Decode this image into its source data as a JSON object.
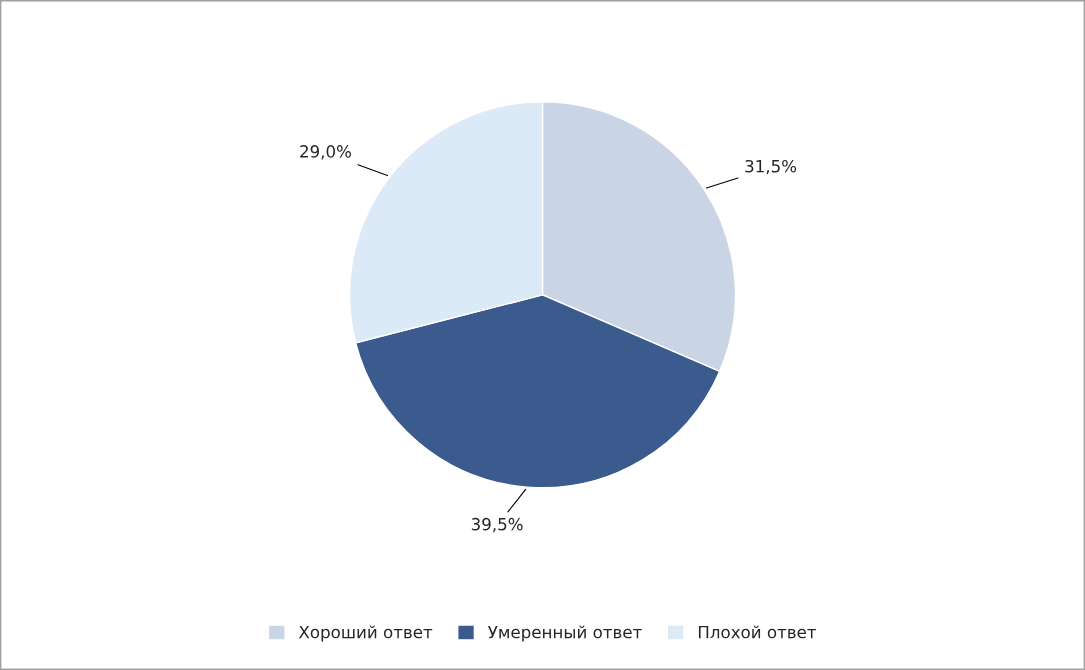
{
  "chart_data": {
    "type": "pie",
    "categories": [
      "Хороший ответ",
      "Умеренный ответ",
      "Плохой ответ"
    ],
    "values": [
      31.5,
      39.5,
      29.0
    ],
    "colors": [
      "#c9d4e4",
      "#3b5b8e",
      "#dce9f6"
    ],
    "value_labels": [
      "31,5%",
      "39,5%",
      "29,0%"
    ],
    "legend": "bottom"
  }
}
